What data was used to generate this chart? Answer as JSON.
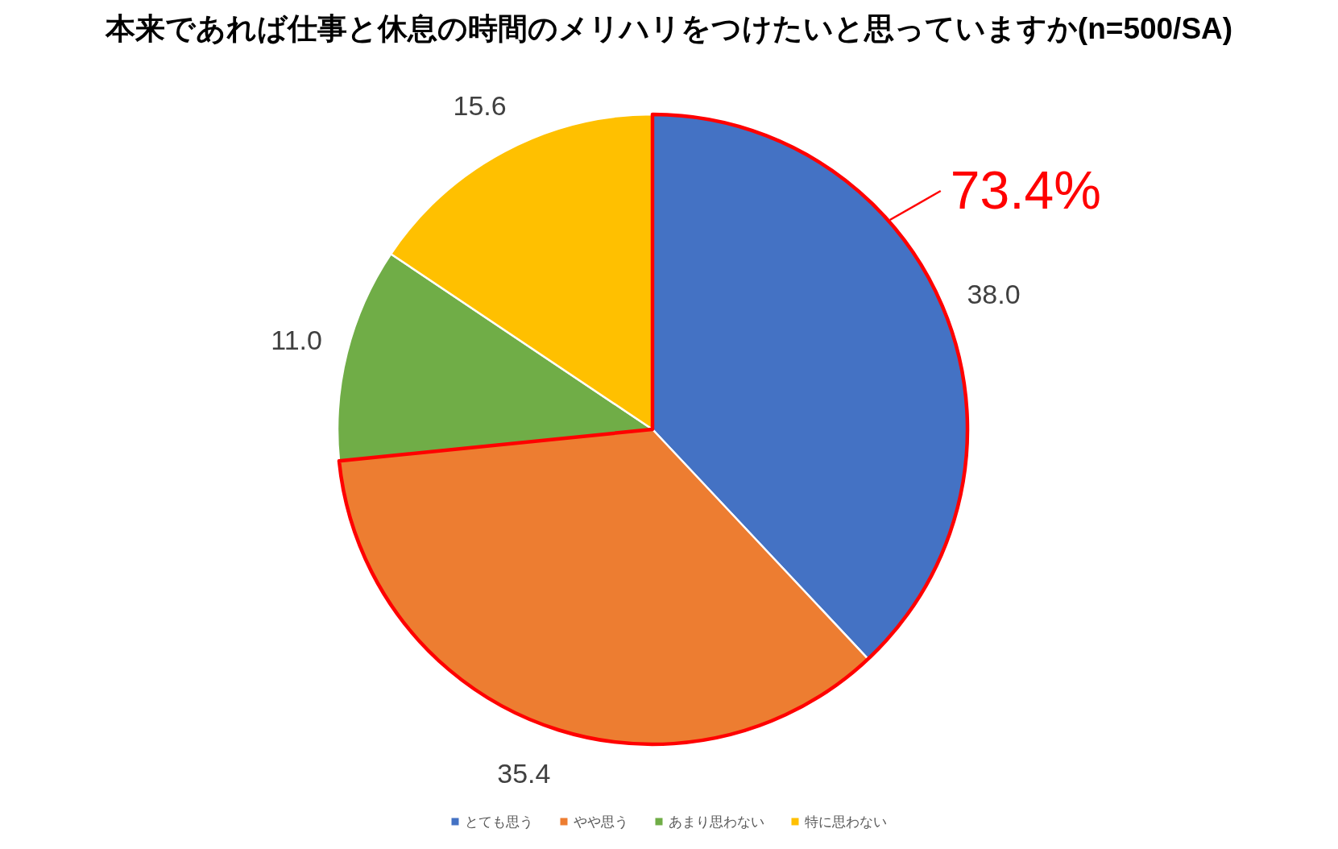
{
  "chart_data": {
    "type": "pie",
    "title": "本来であれば仕事と休息の時間のメリハリをつけたいと思っていますか(n=500/SA)",
    "categories": [
      "とても思う",
      "やや思う",
      "あまり思わない",
      "特に思わない"
    ],
    "values": [
      38.0,
      35.4,
      11.0,
      15.6
    ],
    "value_labels": [
      "38.0",
      "35.4",
      "11.0",
      "15.6"
    ],
    "colors": [
      "#4472c4",
      "#ed7d31",
      "#70ad47",
      "#ffc000"
    ],
    "annotations": [
      "73.4%"
    ],
    "legend": "bottom"
  }
}
